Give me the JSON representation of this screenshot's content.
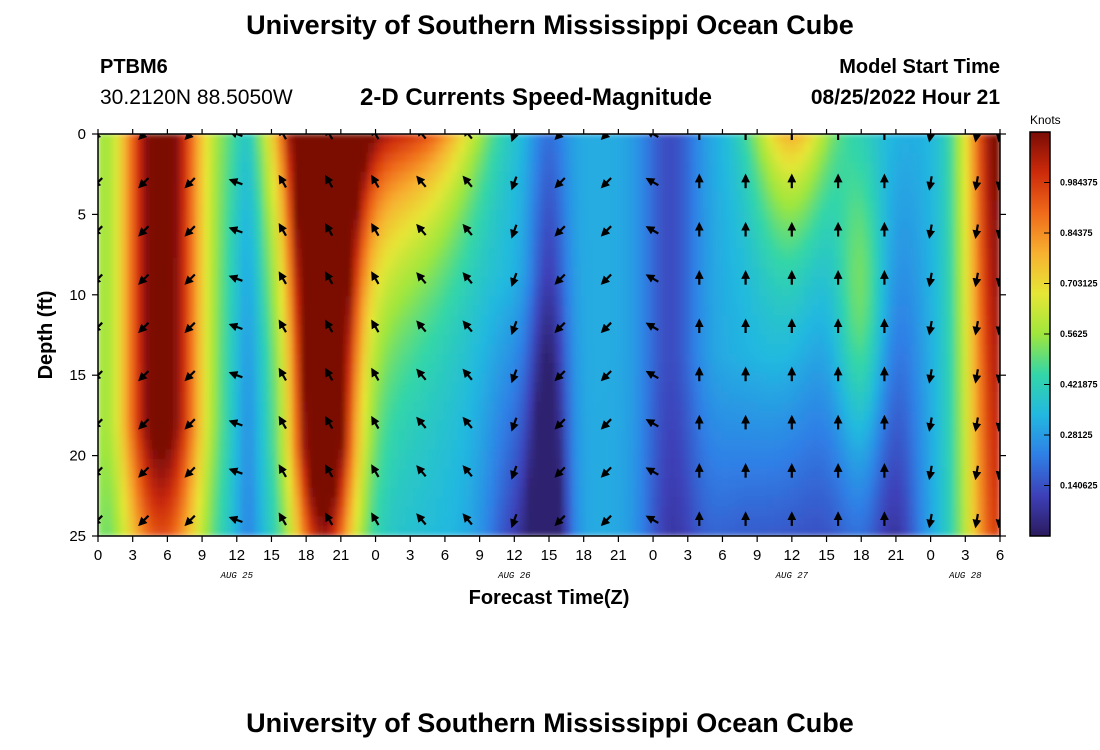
{
  "header": {
    "title": "University of Southern Mississippi Ocean Cube",
    "station_id": "PTBM6",
    "station_coords": "30.2120N  88.5050W",
    "chart_title": "2-D Currents Speed-Magnitude",
    "model_start_label": "Model Start Time",
    "model_start_time": "08/25/2022 Hour 21"
  },
  "footer": {
    "title": "University of Southern Mississippi Ocean Cube"
  },
  "chart_data": {
    "type": "heatmap",
    "title": "2-D Currents Speed-Magnitude",
    "xlabel": "Forecast Time(Z)",
    "ylabel": "Depth (ft)",
    "x_hours_range": [
      0,
      78
    ],
    "x_tick_labels": [
      "0",
      "3",
      "6",
      "9",
      "12",
      "15",
      "18",
      "21",
      "0",
      "3",
      "6",
      "9",
      "12",
      "15",
      "18",
      "21",
      "0",
      "3",
      "6",
      "9",
      "12",
      "15",
      "18",
      "21",
      "0",
      "3",
      "6"
    ],
    "day_labels": [
      {
        "label": "AUG 25",
        "hour": 12
      },
      {
        "label": "AUG 26",
        "hour": 36
      },
      {
        "label": "AUG 27",
        "hour": 60
      },
      {
        "label": "AUG 28",
        "hour": 75
      }
    ],
    "y_ticks": [
      0,
      5,
      10,
      15,
      20,
      25
    ],
    "ylim": [
      0,
      25
    ],
    "colorbar": {
      "unit": "Knots",
      "range": [
        0,
        1.125
      ],
      "tick_labels": [
        "0.984375",
        "0.84375",
        "0.703125",
        "0.5625",
        "0.421875",
        "0.28125",
        "0.140625"
      ],
      "tick_values": [
        0.984375,
        0.84375,
        0.703125,
        0.5625,
        0.421875,
        0.28125,
        0.140625
      ]
    },
    "grid": false,
    "colormap": [
      "#2b1a5e",
      "#3d40b8",
      "#2f7fe6",
      "#22b8e0",
      "#33d6a8",
      "#9fe63c",
      "#e6e636",
      "#f7b130",
      "#ef6a1a",
      "#cc2a0a",
      "#7a0c06"
    ],
    "arrow_hours": [
      0,
      4,
      8,
      12,
      16,
      20,
      24,
      28,
      32,
      36,
      40,
      44,
      48,
      52,
      56,
      60,
      64,
      68,
      72,
      76,
      78
    ],
    "arrow_depths": [
      0,
      3,
      6,
      9,
      12,
      15,
      18,
      21,
      24
    ],
    "arrow_direction_by_hour": [
      {
        "from_hour": 0,
        "to_hour": 2,
        "dir_deg": 225
      },
      {
        "from_hour": 2,
        "to_hour": 10,
        "dir_deg": 225
      },
      {
        "from_hour": 10,
        "to_hour": 15,
        "dir_deg": 290
      },
      {
        "from_hour": 15,
        "to_hour": 27,
        "dir_deg": 330
      },
      {
        "from_hour": 27,
        "to_hour": 34,
        "dir_deg": 320
      },
      {
        "from_hour": 34,
        "to_hour": 38,
        "dir_deg": 200
      },
      {
        "from_hour": 38,
        "to_hour": 46,
        "dir_deg": 225
      },
      {
        "from_hour": 46,
        "to_hour": 50,
        "dir_deg": 300
      },
      {
        "from_hour": 50,
        "to_hour": 71,
        "dir_deg": 0
      },
      {
        "from_hour": 71,
        "to_hour": 79,
        "dir_deg": 190
      }
    ]
  }
}
